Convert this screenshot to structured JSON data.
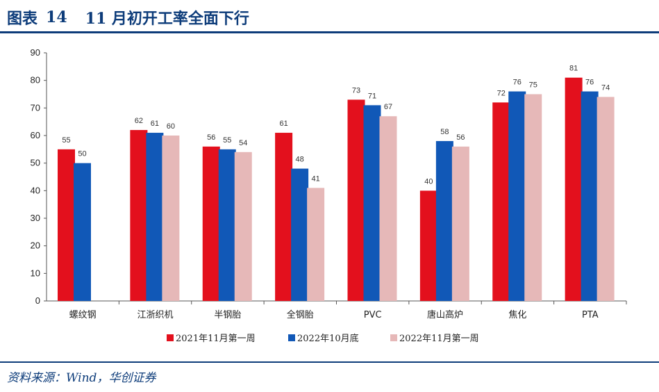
{
  "header": {
    "fig_label": "图表",
    "fig_number": "14",
    "title": "11 月初开工率全面下行"
  },
  "source": "资料来源：Wind，华创证券",
  "colors": {
    "accent": "#0d3c7a",
    "series": [
      "#e3101d",
      "#1158b7",
      "#e6b8b8"
    ]
  },
  "chart_data": {
    "type": "bar",
    "categories": [
      "螺纹钢",
      "江浙织机",
      "半钢胎",
      "全钢胎",
      "PVC",
      "唐山高炉",
      "焦化",
      "PTA"
    ],
    "series": [
      {
        "name": "2021年11月第一周",
        "values": [
          55,
          62,
          56,
          61,
          73,
          40,
          72,
          81
        ]
      },
      {
        "name": "2022年10月底",
        "values": [
          50,
          61,
          55,
          48,
          71,
          58,
          76,
          76
        ]
      },
      {
        "name": "2022年11月第一周",
        "values": [
          null,
          60,
          54,
          41,
          67,
          56,
          75,
          74
        ]
      }
    ],
    "ylim": [
      0,
      90
    ],
    "yticks": [
      "0",
      "10",
      "20",
      "30",
      "40",
      "50",
      "60",
      "70",
      "80",
      "90"
    ],
    "data_labels": true,
    "grid": false,
    "legend": "bottom"
  }
}
